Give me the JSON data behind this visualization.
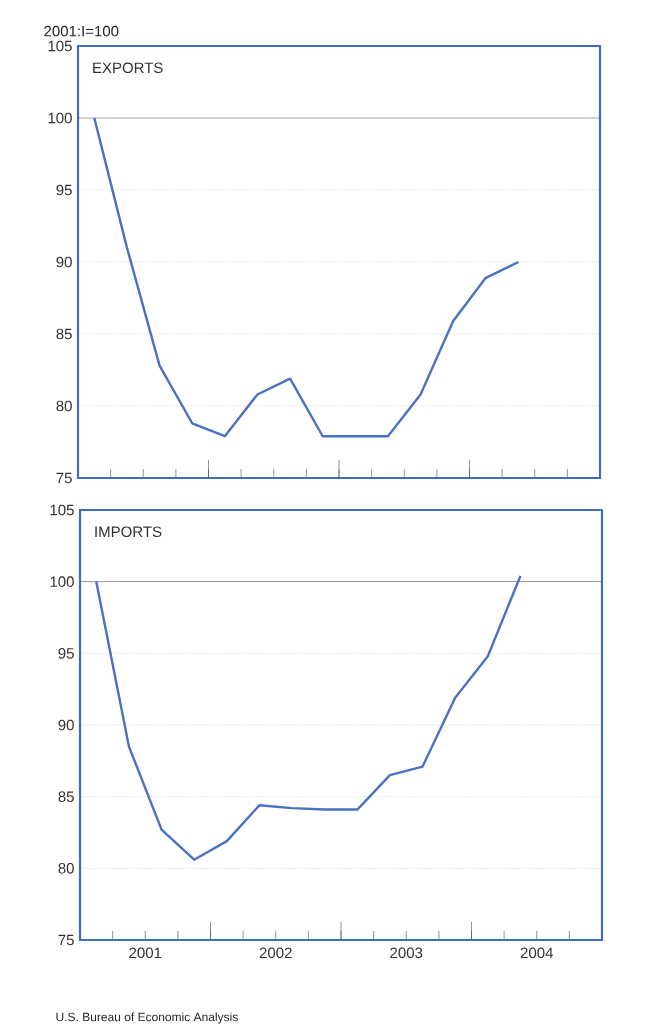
{
  "chart_data": [
    {
      "type": "line",
      "title": "EXPORTS",
      "ylabel": "2001:I=100",
      "series": [
        {
          "color": "#4a72c4",
          "x": [
            2001.125,
            2001.375,
            2001.625,
            2001.875,
            2002.125,
            2002.375,
            2002.625,
            2002.875,
            2003.125,
            2003.375,
            2003.625,
            2003.875,
            2004.125,
            2004.375
          ],
          "values": [
            100,
            91,
            82.8,
            78.8,
            77.9,
            80.8,
            81.9,
            77.9,
            77.9,
            77.9,
            80.8,
            85.9,
            88.9,
            90
          ]
        }
      ],
      "xlim": [
        2001,
        2005
      ],
      "xticks": [
        {
          "value": 2001.25,
          "label": null
        },
        {
          "value": 2001.5,
          "label": null
        },
        {
          "value": 2001.75,
          "label": null
        },
        {
          "value": 2002,
          "label": null
        },
        {
          "value": 2002.25,
          "label": null
        },
        {
          "value": 2002.5,
          "label": null
        },
        {
          "value": 2002.75,
          "label": null
        },
        {
          "value": 2003,
          "label": null
        },
        {
          "value": 2003.25,
          "label": null
        },
        {
          "value": 2003.5,
          "label": null
        },
        {
          "value": 2003.75,
          "label": null
        },
        {
          "value": 2004,
          "label": null
        },
        {
          "value": 2004.25,
          "label": null
        },
        {
          "value": 2004.5,
          "label": null
        },
        {
          "value": 2004.75,
          "label": null
        }
      ],
      "ylim": [
        75,
        105
      ],
      "yticks": [
        75,
        80,
        85,
        90,
        95,
        100,
        105
      ],
      "grid": "y",
      "tick_labels": "y",
      "ref_lines": [
        {
          "axis": "y",
          "value": 100,
          "color": "#333333"
        }
      ]
    },
    {
      "type": "line",
      "title": "IMPORTS",
      "annotations": [
        "U.S. Bureau of Economic Analysis"
      ],
      "series": [
        {
          "color": "#4a72c4",
          "x": [
            2001.125,
            2001.375,
            2001.625,
            2001.875,
            2002.125,
            2002.375,
            2002.625,
            2002.875,
            2003.125,
            2003.375,
            2003.625,
            2003.875,
            2004.125,
            2004.375
          ],
          "values": [
            100,
            88.5,
            82.7,
            80.6,
            81.9,
            84.4,
            84.2,
            84.1,
            84.1,
            86.5,
            87.1,
            91.9,
            94.8,
            100.4
          ]
        }
      ],
      "xlim": [
        2001,
        2005
      ],
      "xticks": [
        {
          "value": 2001.25,
          "label": null
        },
        {
          "value": 2001.5,
          "label": "2001"
        },
        {
          "value": 2001.75,
          "label": null
        },
        {
          "value": 2002,
          "label": null
        },
        {
          "value": 2002.25,
          "label": null
        },
        {
          "value": 2002.5,
          "label": "2002"
        },
        {
          "value": 2002.75,
          "label": null
        },
        {
          "value": 2003,
          "label": null
        },
        {
          "value": 2003.25,
          "label": null
        },
        {
          "value": 2003.5,
          "label": "2003"
        },
        {
          "value": 2003.75,
          "label": null
        },
        {
          "value": 2004,
          "label": null
        },
        {
          "value": 2004.25,
          "label": null
        },
        {
          "value": 2004.5,
          "label": "2004"
        },
        {
          "value": 2004.75,
          "label": null
        }
      ],
      "ylim": [
        75,
        105
      ],
      "yticks": [
        75,
        80,
        85,
        90,
        95,
        100,
        105
      ],
      "grid": "y",
      "ref_lines": [
        {
          "axis": "y",
          "value": 100,
          "color": "#333333"
        }
      ]
    }
  ]
}
